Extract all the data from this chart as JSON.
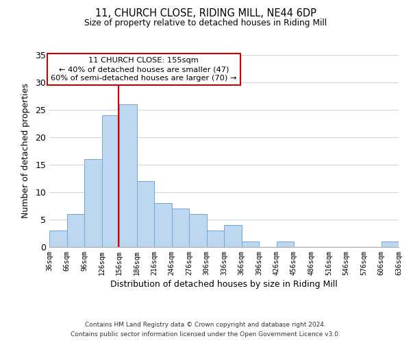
{
  "title": "11, CHURCH CLOSE, RIDING MILL, NE44 6DP",
  "subtitle": "Size of property relative to detached houses in Riding Mill",
  "xlabel": "Distribution of detached houses by size in Riding Mill",
  "ylabel": "Number of detached properties",
  "bin_edges": [
    36,
    66,
    96,
    126,
    156,
    186,
    216,
    246,
    276,
    306,
    336,
    366,
    396,
    426,
    456,
    486,
    516,
    546,
    576,
    606,
    636
  ],
  "bin_counts": [
    3,
    6,
    16,
    24,
    26,
    12,
    8,
    7,
    6,
    3,
    4,
    1,
    0,
    1,
    0,
    0,
    0,
    0,
    0,
    1
  ],
  "bar_color": "#bdd7ee",
  "bar_edge_color": "#70a8d4",
  "reference_line_x": 155,
  "reference_line_color": "#cc0000",
  "ylim": [
    0,
    35
  ],
  "yticks": [
    0,
    5,
    10,
    15,
    20,
    25,
    30,
    35
  ],
  "annotation_title": "11 CHURCH CLOSE: 155sqm",
  "annotation_line1": "← 40% of detached houses are smaller (47)",
  "annotation_line2": "60% of semi-detached houses are larger (70) →",
  "annotation_box_color": "#ffffff",
  "annotation_box_edge_color": "#cc0000",
  "footer_line1": "Contains HM Land Registry data © Crown copyright and database right 2024.",
  "footer_line2": "Contains public sector information licensed under the Open Government Licence v3.0.",
  "background_color": "#ffffff",
  "grid_color": "#c8d8e8"
}
